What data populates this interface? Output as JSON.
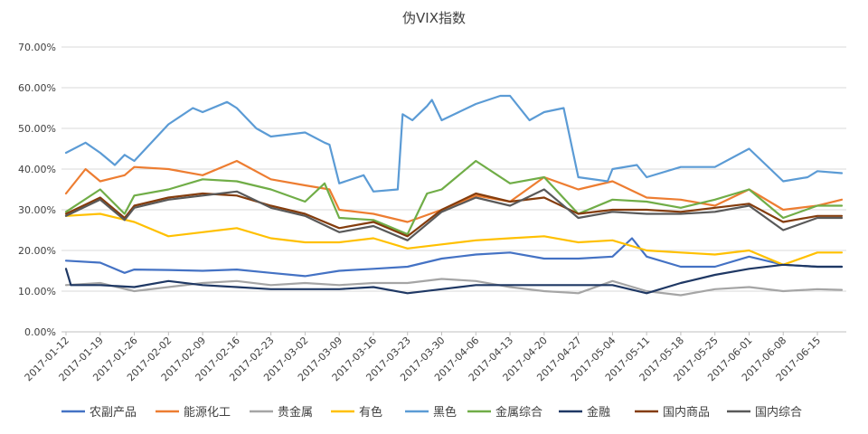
{
  "chart_data": {
    "type": "line",
    "title": "伪VIX指数",
    "ylim": [
      0,
      70
    ],
    "y_ticks": [
      0,
      10,
      20,
      30,
      40,
      50,
      60,
      70
    ],
    "y_tick_labels": [
      "0.00%",
      "10.00%",
      "20.00%",
      "30.00%",
      "40.00%",
      "50.00%",
      "60.00%",
      "70.00%"
    ],
    "x_range": [
      "2017-01-12",
      "2017-06-20"
    ],
    "x_tick_labels": [
      "2017-01-12",
      "2017-01-19",
      "2017-01-26",
      "2017-02-02",
      "2017-02-09",
      "2017-02-16",
      "2017-02-23",
      "2017-03-02",
      "2017-03-09",
      "2017-03-16",
      "2017-03-23",
      "2017-03-30",
      "2017-04-06",
      "2017-04-13",
      "2017-04-20",
      "2017-04-27",
      "2017-05-04",
      "2017-05-11",
      "2017-05-18",
      "2017-05-25",
      "2017-06-01",
      "2017-06-08",
      "2017-06-15"
    ],
    "grid": true,
    "legend_position": "bottom",
    "series": [
      {
        "name": "农副产品",
        "color": "#4472c4",
        "x": [
          "2017-01-12",
          "2017-01-19",
          "2017-01-24",
          "2017-01-26",
          "2017-02-02",
          "2017-02-09",
          "2017-02-16",
          "2017-02-23",
          "2017-03-02",
          "2017-03-09",
          "2017-03-16",
          "2017-03-23",
          "2017-03-30",
          "2017-04-06",
          "2017-04-13",
          "2017-04-20",
          "2017-04-27",
          "2017-05-04",
          "2017-05-08",
          "2017-05-11",
          "2017-05-18",
          "2017-05-25",
          "2017-06-01",
          "2017-06-08",
          "2017-06-15",
          "2017-06-20"
        ],
        "y": [
          17.5,
          17.0,
          14.5,
          15.3,
          15.2,
          15.0,
          15.3,
          14.5,
          13.7,
          15.0,
          15.5,
          16.0,
          18.0,
          19.0,
          19.5,
          18.0,
          18.0,
          18.5,
          23.0,
          18.5,
          16.0,
          16.0,
          18.5,
          16.5,
          16.0,
          16.0
        ]
      },
      {
        "name": "能源化工",
        "color": "#ed7d31",
        "x": [
          "2017-01-12",
          "2017-01-16",
          "2017-01-19",
          "2017-01-24",
          "2017-01-26",
          "2017-02-02",
          "2017-02-09",
          "2017-02-16",
          "2017-02-23",
          "2017-03-02",
          "2017-03-07",
          "2017-03-09",
          "2017-03-16",
          "2017-03-23",
          "2017-03-30",
          "2017-04-06",
          "2017-04-13",
          "2017-04-20",
          "2017-04-27",
          "2017-05-04",
          "2017-05-11",
          "2017-05-18",
          "2017-05-25",
          "2017-06-01",
          "2017-06-08",
          "2017-06-15",
          "2017-06-20"
        ],
        "y": [
          34.0,
          40.0,
          37.0,
          38.5,
          40.5,
          40.0,
          38.5,
          42.0,
          37.5,
          36.0,
          35.0,
          30.0,
          29.0,
          27.0,
          30.0,
          33.5,
          32.0,
          38.0,
          35.0,
          37.0,
          33.0,
          32.5,
          31.0,
          35.0,
          30.0,
          31.0,
          32.5
        ]
      },
      {
        "name": "贵金属",
        "color": "#a5a5a5",
        "x": [
          "2017-01-12",
          "2017-01-19",
          "2017-01-26",
          "2017-02-02",
          "2017-02-09",
          "2017-02-16",
          "2017-02-23",
          "2017-03-02",
          "2017-03-09",
          "2017-03-16",
          "2017-03-23",
          "2017-03-30",
          "2017-04-06",
          "2017-04-13",
          "2017-04-20",
          "2017-04-27",
          "2017-05-04",
          "2017-05-11",
          "2017-05-18",
          "2017-05-25",
          "2017-06-01",
          "2017-06-08",
          "2017-06-15",
          "2017-06-20"
        ],
        "y": [
          11.5,
          12.0,
          10.0,
          11.0,
          12.0,
          12.5,
          11.5,
          12.0,
          11.5,
          12.0,
          12.0,
          13.0,
          12.5,
          11.0,
          10.0,
          9.5,
          12.5,
          10.0,
          9.0,
          10.5,
          11.0,
          10.0,
          10.5,
          10.3
        ]
      },
      {
        "name": "有色",
        "color": "#ffc000",
        "x": [
          "2017-01-12",
          "2017-01-19",
          "2017-01-26",
          "2017-02-02",
          "2017-02-09",
          "2017-02-16",
          "2017-02-23",
          "2017-03-02",
          "2017-03-09",
          "2017-03-16",
          "2017-03-23",
          "2017-03-30",
          "2017-04-06",
          "2017-04-13",
          "2017-04-20",
          "2017-04-27",
          "2017-05-04",
          "2017-05-11",
          "2017-05-18",
          "2017-05-25",
          "2017-06-01",
          "2017-06-08",
          "2017-06-15",
          "2017-06-20"
        ],
        "y": [
          28.5,
          29.0,
          27.0,
          23.5,
          24.5,
          25.5,
          23.0,
          22.0,
          22.0,
          23.0,
          20.5,
          21.5,
          22.5,
          23.0,
          23.5,
          22.0,
          22.5,
          20.0,
          19.5,
          19.0,
          20.0,
          16.5,
          19.5,
          19.5
        ]
      },
      {
        "name": "黑色",
        "color": "#5b9bd5",
        "x": [
          "2017-01-12",
          "2017-01-16",
          "2017-01-19",
          "2017-01-22",
          "2017-01-24",
          "2017-01-26",
          "2017-02-02",
          "2017-02-07",
          "2017-02-09",
          "2017-02-14",
          "2017-02-16",
          "2017-02-20",
          "2017-02-23",
          "2017-03-02",
          "2017-03-06",
          "2017-03-07",
          "2017-03-09",
          "2017-03-14",
          "2017-03-16",
          "2017-03-21",
          "2017-03-22",
          "2017-03-24",
          "2017-03-27",
          "2017-03-28",
          "2017-03-30",
          "2017-04-06",
          "2017-04-11",
          "2017-04-13",
          "2017-04-17",
          "2017-04-20",
          "2017-04-24",
          "2017-04-27",
          "2017-05-03",
          "2017-05-04",
          "2017-05-09",
          "2017-05-11",
          "2017-05-18",
          "2017-05-25",
          "2017-06-01",
          "2017-06-08",
          "2017-06-13",
          "2017-06-15",
          "2017-06-20"
        ],
        "y": [
          44.0,
          46.5,
          44.0,
          41.0,
          43.5,
          42.0,
          51.0,
          55.0,
          54.0,
          56.5,
          55.0,
          50.0,
          48.0,
          49.0,
          46.5,
          46.0,
          36.5,
          38.5,
          34.5,
          35.0,
          53.5,
          52.0,
          55.5,
          57.0,
          52.0,
          56.0,
          58.0,
          58.0,
          52.0,
          54.0,
          55.0,
          38.0,
          37.0,
          40.0,
          41.0,
          38.0,
          40.5,
          40.5,
          45.0,
          37.0,
          38.0,
          39.5,
          39.0
        ]
      },
      {
        "name": "金属综合",
        "color": "#70ad47",
        "x": [
          "2017-01-12",
          "2017-01-19",
          "2017-01-24",
          "2017-01-26",
          "2017-02-02",
          "2017-02-09",
          "2017-02-16",
          "2017-02-23",
          "2017-03-02",
          "2017-03-06",
          "2017-03-09",
          "2017-03-16",
          "2017-03-23",
          "2017-03-27",
          "2017-03-30",
          "2017-04-06",
          "2017-04-13",
          "2017-04-20",
          "2017-04-27",
          "2017-05-04",
          "2017-05-11",
          "2017-05-18",
          "2017-05-25",
          "2017-06-01",
          "2017-06-08",
          "2017-06-15",
          "2017-06-20"
        ],
        "y": [
          29.5,
          35.0,
          29.0,
          33.5,
          35.0,
          37.5,
          37.0,
          35.0,
          32.0,
          36.5,
          28.0,
          27.5,
          24.0,
          34.0,
          35.0,
          42.0,
          36.5,
          38.0,
          29.0,
          32.5,
          32.0,
          30.5,
          32.5,
          35.0,
          28.0,
          31.0,
          31.0
        ]
      },
      {
        "name": "金融",
        "color": "#1f3864",
        "x": [
          "2017-01-12",
          "2017-01-13",
          "2017-01-19",
          "2017-01-26",
          "2017-02-02",
          "2017-02-09",
          "2017-02-16",
          "2017-02-23",
          "2017-03-02",
          "2017-03-09",
          "2017-03-16",
          "2017-03-23",
          "2017-03-30",
          "2017-04-06",
          "2017-04-13",
          "2017-04-20",
          "2017-04-27",
          "2017-05-04",
          "2017-05-11",
          "2017-05-18",
          "2017-05-25",
          "2017-06-01",
          "2017-06-08",
          "2017-06-15",
          "2017-06-20"
        ],
        "y": [
          15.5,
          11.5,
          11.5,
          11.0,
          12.5,
          11.5,
          11.0,
          10.5,
          10.5,
          10.5,
          11.0,
          9.5,
          10.5,
          11.5,
          11.5,
          11.5,
          11.5,
          11.5,
          9.5,
          12.0,
          14.0,
          15.5,
          16.5,
          16.0,
          16.0
        ]
      },
      {
        "name": "国内商品",
        "color": "#843c0c",
        "x": [
          "2017-01-12",
          "2017-01-19",
          "2017-01-24",
          "2017-01-26",
          "2017-02-02",
          "2017-02-09",
          "2017-02-16",
          "2017-02-23",
          "2017-03-02",
          "2017-03-09",
          "2017-03-16",
          "2017-03-23",
          "2017-03-30",
          "2017-04-06",
          "2017-04-13",
          "2017-04-20",
          "2017-04-27",
          "2017-05-04",
          "2017-05-11",
          "2017-05-18",
          "2017-05-25",
          "2017-06-01",
          "2017-06-08",
          "2017-06-15",
          "2017-06-20"
        ],
        "y": [
          29.0,
          33.0,
          28.0,
          31.0,
          33.0,
          34.0,
          33.5,
          31.0,
          29.0,
          25.5,
          27.0,
          23.5,
          30.0,
          34.0,
          32.0,
          33.0,
          29.0,
          30.0,
          30.0,
          29.5,
          30.5,
          31.5,
          27.0,
          28.5,
          28.5
        ]
      },
      {
        "name": "国内综合",
        "color": "#595959",
        "x": [
          "2017-01-12",
          "2017-01-19",
          "2017-01-24",
          "2017-01-26",
          "2017-02-02",
          "2017-02-09",
          "2017-02-16",
          "2017-02-23",
          "2017-03-02",
          "2017-03-09",
          "2017-03-16",
          "2017-03-23",
          "2017-03-30",
          "2017-04-06",
          "2017-04-13",
          "2017-04-20",
          "2017-04-27",
          "2017-05-04",
          "2017-05-11",
          "2017-05-18",
          "2017-05-25",
          "2017-06-01",
          "2017-06-08",
          "2017-06-15",
          "2017-06-20"
        ],
        "y": [
          28.5,
          32.5,
          27.5,
          30.5,
          32.5,
          33.5,
          34.5,
          30.5,
          28.5,
          24.5,
          26.0,
          22.5,
          29.5,
          33.0,
          31.0,
          35.0,
          28.0,
          29.5,
          29.0,
          29.0,
          29.5,
          31.0,
          25.0,
          28.0,
          28.0
        ]
      }
    ]
  }
}
